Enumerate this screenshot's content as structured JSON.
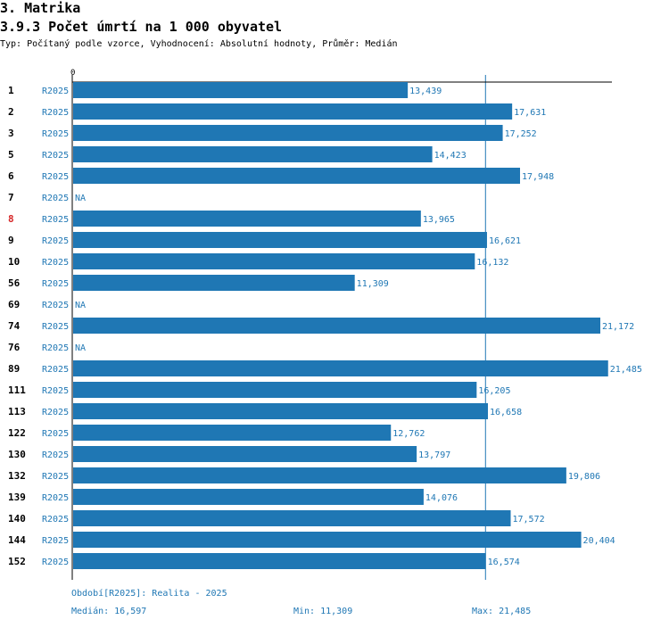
{
  "header": {
    "section_title": "3. Matrika",
    "chart_title": "3.9.3 Počet úmrtí na 1 000 obyvatel",
    "subtitle": "Typ: Počítaný podle vzorce, Vyhodnocení: Absolutní hodnoty, Průměr: Medián"
  },
  "chart_data": {
    "type": "bar",
    "orientation": "horizontal",
    "axis_zero_label": "0",
    "x_range": [
      0,
      22000
    ],
    "period_label": "R2025",
    "categories": [
      "1",
      "2",
      "3",
      "5",
      "6",
      "7",
      "8",
      "9",
      "10",
      "56",
      "69",
      "74",
      "76",
      "89",
      "111",
      "113",
      "122",
      "130",
      "132",
      "139",
      "140",
      "144",
      "152"
    ],
    "values": [
      13439,
      17631,
      17252,
      14423,
      17948,
      null,
      13965,
      16621,
      16132,
      11309,
      null,
      21172,
      null,
      21485,
      16205,
      16658,
      12762,
      13797,
      19806,
      14076,
      17572,
      20404,
      16574
    ],
    "value_labels": [
      "13,439",
      "17,631",
      "17,252",
      "14,423",
      "17,948",
      "NA",
      "13,965",
      "16,621",
      "16,132",
      "11,309",
      "NA",
      "21,172",
      "NA",
      "21,485",
      "16,205",
      "16,658",
      "12,762",
      "13,797",
      "19,806",
      "14,076",
      "17,572",
      "20,404",
      "16,574"
    ],
    "highlighted_category": "8",
    "median": 16597,
    "colors": {
      "bar": "#1f77b4",
      "text": "#1f77b4",
      "highlight": "#d62728",
      "axis": "#000000"
    }
  },
  "footer": {
    "period_note": "Období[R2025]: Realita - 2025",
    "median_label": "Medián: 16,597",
    "min_label": "Min: 11,309",
    "max_label": "Max: 21,485"
  }
}
